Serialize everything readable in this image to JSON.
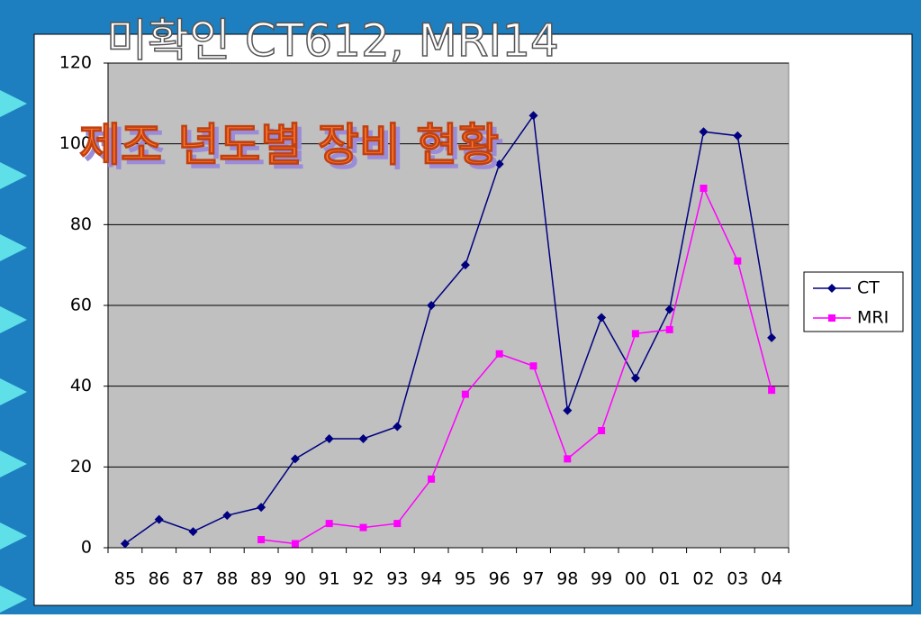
{
  "chart_data": {
    "type": "line",
    "title": "미확인 CT612, MRI14",
    "subtitle": "제조 년도별 장비 현황",
    "categories": [
      "85",
      "86",
      "87",
      "88",
      "89",
      "90",
      "91",
      "92",
      "93",
      "94",
      "95",
      "96",
      "97",
      "98",
      "99",
      "00",
      "01",
      "02",
      "03",
      "04"
    ],
    "series": [
      {
        "name": "CT",
        "color": "#000080",
        "marker": "diamond",
        "values": [
          1,
          7,
          4,
          8,
          10,
          22,
          27,
          27,
          30,
          60,
          70,
          95,
          107,
          34,
          57,
          42,
          59,
          103,
          102,
          52
        ]
      },
      {
        "name": "MRI",
        "color": "#ff00ff",
        "marker": "square",
        "values": [
          null,
          null,
          null,
          null,
          2,
          1,
          6,
          5,
          6,
          17,
          38,
          48,
          45,
          22,
          29,
          53,
          54,
          89,
          71,
          39
        ]
      }
    ],
    "ylim": [
      0,
      120
    ],
    "yticks": [
      0,
      20,
      40,
      60,
      80,
      100,
      120
    ],
    "grid": true,
    "legend": "right"
  }
}
